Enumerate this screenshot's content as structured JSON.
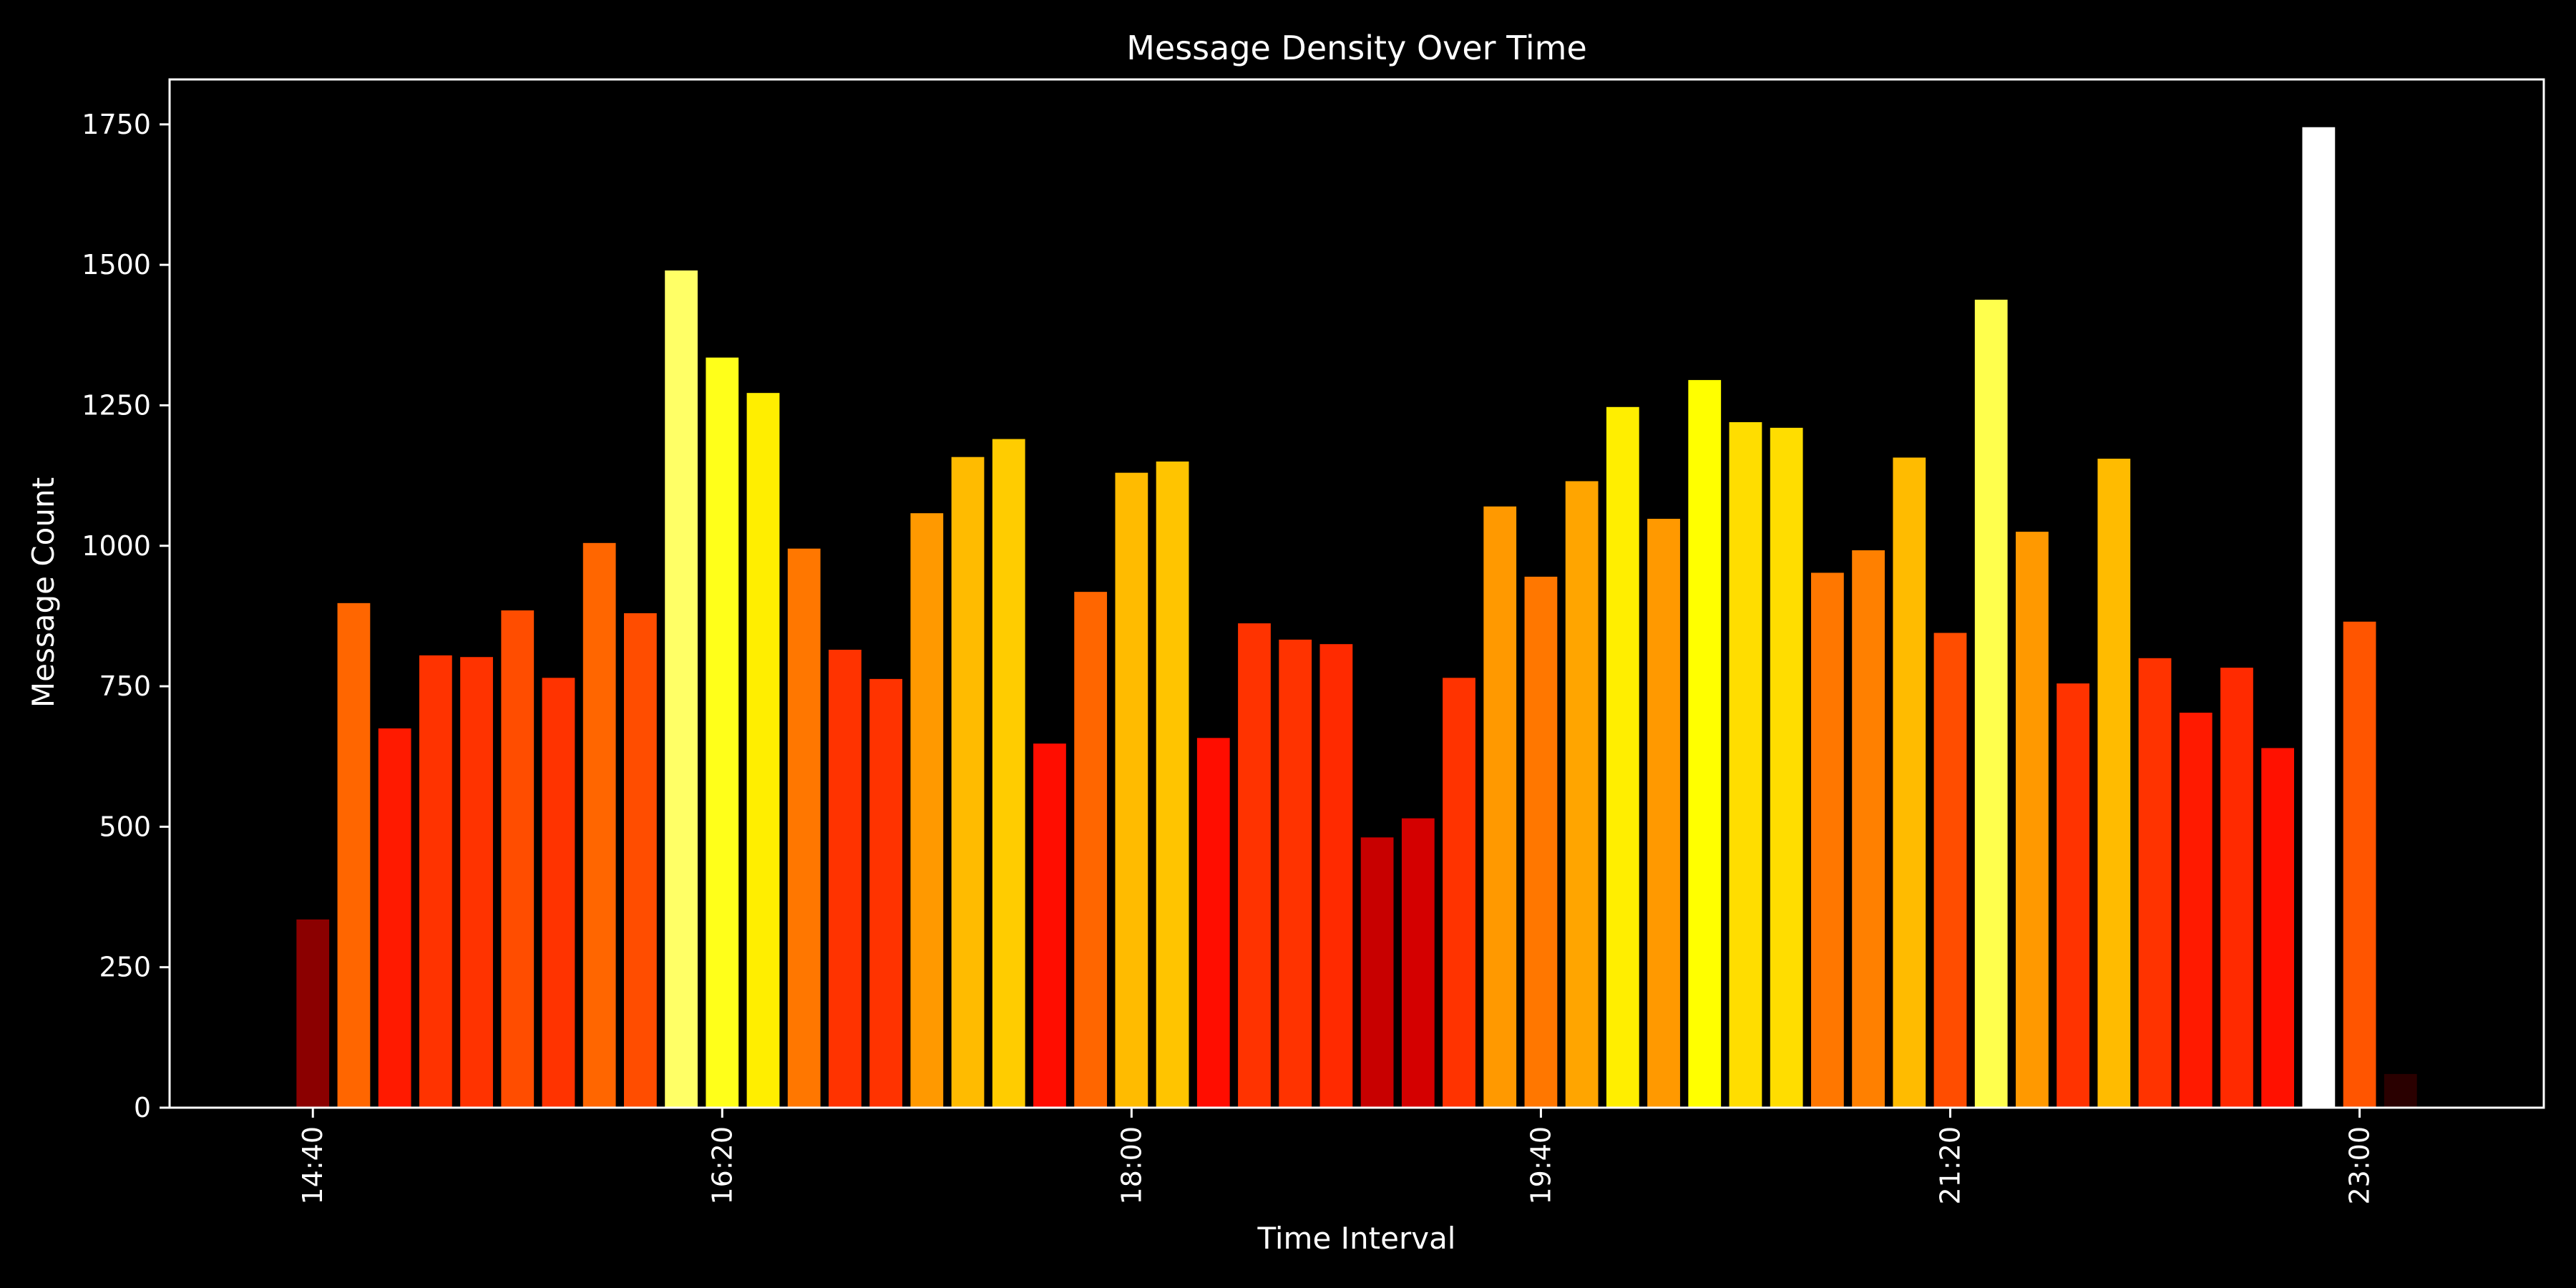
{
  "chart_data": {
    "type": "bar",
    "title": "Message Density Over Time",
    "xlabel": "Time Interval",
    "ylabel": "Message Count",
    "ylim": [
      0,
      1830
    ],
    "xlim": [
      -3.5,
      54.5
    ],
    "grid": false,
    "background": "#000000",
    "x_tick_labels": [
      {
        "index": 0,
        "label": "14:40"
      },
      {
        "index": 10,
        "label": "16:20"
      },
      {
        "index": 20,
        "label": "18:00"
      },
      {
        "index": 30,
        "label": "19:40"
      },
      {
        "index": 40,
        "label": "21:20"
      },
      {
        "index": 50,
        "label": "23:00"
      }
    ],
    "y_ticks": [
      0,
      250,
      500,
      750,
      1000,
      1250,
      1500,
      1750
    ],
    "categories": [
      "14:40",
      "14:50",
      "15:00",
      "15:10",
      "15:20",
      "15:30",
      "15:40",
      "15:50",
      "16:00",
      "16:10",
      "16:20",
      "16:30",
      "16:40",
      "16:50",
      "17:00",
      "17:10",
      "17:20",
      "17:30",
      "17:40",
      "17:50",
      "18:00",
      "18:10",
      "18:20",
      "18:30",
      "18:40",
      "18:50",
      "19:00",
      "19:10",
      "19:20",
      "19:30",
      "19:40",
      "19:50",
      "20:00",
      "20:10",
      "20:20",
      "20:30",
      "20:40",
      "20:50",
      "21:00",
      "21:10",
      "21:20",
      "21:30",
      "21:40",
      "21:50",
      "22:00",
      "22:10",
      "22:20",
      "22:30",
      "22:40",
      "22:50",
      "23:00",
      "23:10"
    ],
    "values": [
      335,
      898,
      675,
      805,
      802,
      885,
      765,
      1005,
      880,
      1490,
      1335,
      1272,
      995,
      815,
      763,
      1058,
      1158,
      1190,
      648,
      918,
      1130,
      1150,
      658,
      862,
      833,
      825,
      481,
      515,
      765,
      1070,
      945,
      1115,
      1247,
      1048,
      1295,
      1220,
      1210,
      952,
      992,
      1157,
      845,
      1438,
      1025,
      755,
      1155,
      800,
      703,
      783,
      640,
      1745,
      865,
      60
    ],
    "bar_colors": [
      "#8b0000",
      "#ff6600",
      "#ff1a00",
      "#ff3300",
      "#ff3300",
      "#ff4d00",
      "#ff3300",
      "#ff6600",
      "#ff4d00",
      "#ffff66",
      "#ffff1a",
      "#ffee00",
      "#ff7700",
      "#ff3300",
      "#ff3300",
      "#ff9900",
      "#ffbb00",
      "#ffcc00",
      "#ff0d00",
      "#ff6600",
      "#ffbb00",
      "#ffc400",
      "#ff0d00",
      "#ff3300",
      "#ff3300",
      "#ff2a00",
      "#c80000",
      "#d40000",
      "#ff3300",
      "#ff9900",
      "#ff7700",
      "#ffa500",
      "#ffee00",
      "#ff9900",
      "#ffff00",
      "#ffdd00",
      "#ffdd00",
      "#ff7700",
      "#ff8000",
      "#ffbb00",
      "#ff4d00",
      "#ffff4d",
      "#ff9900",
      "#ff3300",
      "#ffbb00",
      "#ff3300",
      "#ff1a00",
      "#ff2a00",
      "#ff1100",
      "#ffffff",
      "#ff5500",
      "#2a0000"
    ]
  }
}
